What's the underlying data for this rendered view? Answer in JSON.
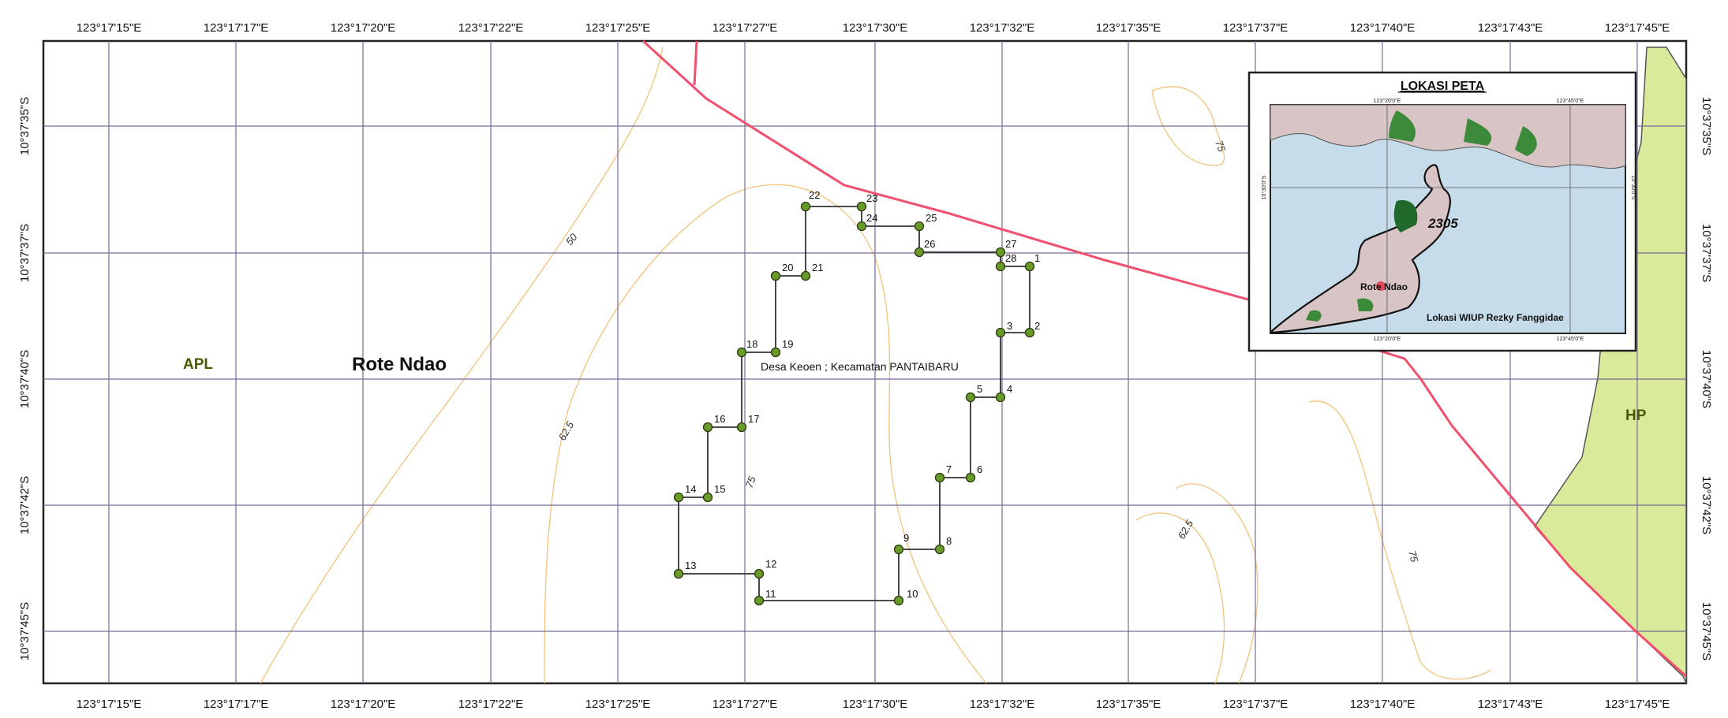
{
  "map": {
    "top_x_ticks": [
      "123°17'15\"E",
      "123°17'17\"E",
      "123°17'20\"E",
      "123°17'22\"E",
      "123°17'25\"E",
      "123°17'27\"E",
      "123°17'30\"E",
      "123°17'32\"E",
      "123°17'35\"E",
      "123°17'37\"E",
      "123°17'40\"E",
      "123°17'43\"E",
      "123°17'45\"E"
    ],
    "bottom_x_ticks": [
      "123°17'15\"E",
      "123°17'17\"E",
      "123°17'20\"E",
      "123°17'22\"E",
      "123°17'25\"E",
      "123°17'27\"E",
      "123°17'30\"E",
      "123°17'32\"E",
      "123°17'35\"E",
      "123°17'37\"E",
      "123°17'40\"E",
      "123°17'43\"E",
      "123°17'45\"E"
    ],
    "y_ticks": [
      "10°37'35\"S",
      "10°37'37\"S",
      "10°37'40\"S",
      "10°37'42\"S",
      "10°37'45\"S"
    ],
    "zone_left": "APL",
    "zone_right": "HP",
    "region_name": "Rote Ndao",
    "desa_label": "Desa Keoen ; Kecamatan PANTAIBARU",
    "contour_labels": [
      "50",
      "62.5",
      "75",
      "75",
      "62.5",
      "75"
    ],
    "points": [
      {
        "id": "1"
      },
      {
        "id": "2"
      },
      {
        "id": "3"
      },
      {
        "id": "4"
      },
      {
        "id": "5"
      },
      {
        "id": "6"
      },
      {
        "id": "7"
      },
      {
        "id": "8"
      },
      {
        "id": "9"
      },
      {
        "id": "10"
      },
      {
        "id": "11"
      },
      {
        "id": "12"
      },
      {
        "id": "13"
      },
      {
        "id": "14"
      },
      {
        "id": "15"
      },
      {
        "id": "16"
      },
      {
        "id": "17"
      },
      {
        "id": "18"
      },
      {
        "id": "19"
      },
      {
        "id": "20"
      },
      {
        "id": "21"
      },
      {
        "id": "22"
      },
      {
        "id": "23"
      },
      {
        "id": "24"
      },
      {
        "id": "25"
      },
      {
        "id": "26"
      },
      {
        "id": "27"
      },
      {
        "id": "28"
      }
    ],
    "colors": {
      "boundary": "#f0506e",
      "forest_zone": "#d9eb9a",
      "contour": "#f2c27a",
      "grid": "#7a6a9a",
      "point_fill": "#6a9a2a",
      "polygon": "#333333"
    }
  },
  "inset": {
    "title": "LOKASI PETA",
    "top_ticks": [
      "123°20'0\"E",
      "123°45'0\"E"
    ],
    "bottom_ticks": [
      "123°20'0\"E",
      "123°45'0\"E"
    ],
    "left_ticks": [
      "10°30'0\"S"
    ],
    "right_ticks": [
      "10°30'0\"S"
    ],
    "number_label": "2305",
    "place_label": "Rote Ndao",
    "location_label": "Lokasi WIUP Rezky Fanggidae"
  }
}
